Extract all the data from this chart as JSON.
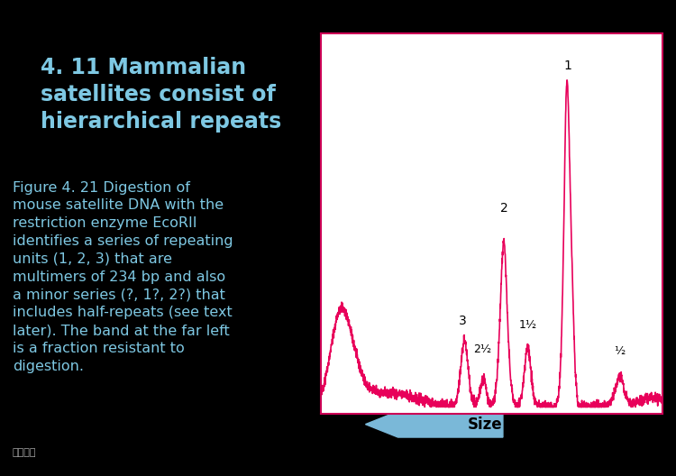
{
  "bg_color": "#000000",
  "title_text": "4. 11 Mammalian\nsatellites consist of\nhierarchical repeats",
  "title_color": "#7ec8e3",
  "title_fontsize": 17,
  "body_text": "Figure 4. 21 Digestion of\nmouse satellite DNA with the\nrestriction enzyme EcoRII\nidentifies a series of repeating\nunits (1, 2, 3) that are\nmultimers of 234 bp and also\na minor series (?, 1?, 2?) that\nincludes half-repeats (see text\nlater). The band at the far left\nis a fraction resistant to\ndigestion.",
  "body_color": "#7ec8e3",
  "body_fontsize": 11.5,
  "chart_bg": "#ffffff",
  "outer_bg": "#c8dff0",
  "border_color": "#cc0055",
  "line_color": "#e8005a",
  "size_arrow_color": "#7ab8d8",
  "size_text_color": "#000000",
  "peak_label_color": "#000000",
  "logo_color": "#aaaaaa"
}
